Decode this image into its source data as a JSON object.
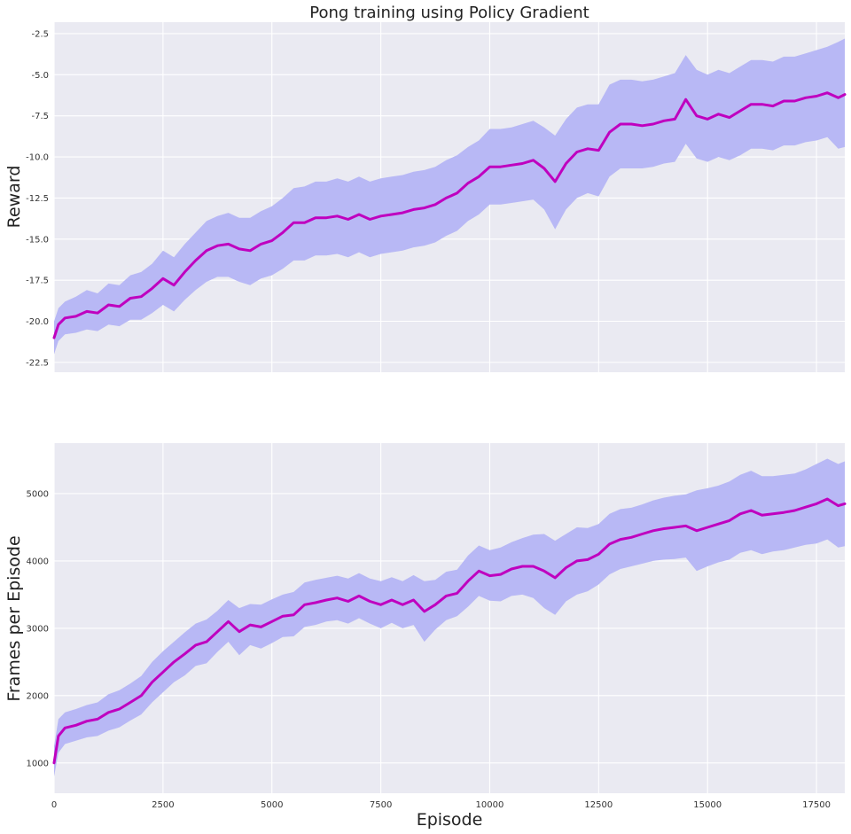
{
  "chart_data": [
    {
      "type": "line",
      "title": "Pong training using Policy Gradient",
      "xlabel": "",
      "ylabel": "Reward",
      "xlim": [
        0,
        18150
      ],
      "ylim": [
        -23.1,
        -1.8
      ],
      "xticks": [
        0,
        2500,
        5000,
        7500,
        10000,
        12500,
        15000,
        17500
      ],
      "xtick_labels_visible": false,
      "yticks": [
        -22.5,
        -20.0,
        -17.5,
        -15.0,
        -12.5,
        -10.0,
        -7.5,
        -5.0,
        -2.5
      ],
      "ytick_labels": [
        "-22.5",
        "-20.0",
        "-17.5",
        "-15.0",
        "-12.5",
        "-10.0",
        "-7.5",
        "-5.0",
        "-2.5"
      ],
      "grid": true,
      "line_color": "#bf00bf",
      "band_color": "#b8b8f5",
      "series": [
        {
          "x": [
            0,
            100,
            250,
            500,
            750,
            1000,
            1250,
            1500,
            1750,
            2000,
            2250,
            2500,
            2750,
            3000,
            3250,
            3500,
            3750,
            4000,
            4250,
            4500,
            4750,
            5000,
            5250,
            5500,
            5750,
            6000,
            6250,
            6500,
            6750,
            7000,
            7250,
            7500,
            7750,
            8000,
            8250,
            8500,
            8750,
            9000,
            9250,
            9500,
            9750,
            10000,
            10250,
            10500,
            10750,
            11000,
            11250,
            11500,
            11750,
            12000,
            12250,
            12500,
            12750,
            13000,
            13250,
            13500,
            13750,
            14000,
            14250,
            14500,
            14750,
            15000,
            15250,
            15500,
            15750,
            16000,
            16250,
            16500,
            16750,
            17000,
            17250,
            17500,
            17750,
            18000,
            18150
          ],
          "values": [
            -21.0,
            -20.2,
            -19.8,
            -19.7,
            -19.4,
            -19.5,
            -19.0,
            -19.1,
            -18.6,
            -18.5,
            -18.0,
            -17.4,
            -17.8,
            -17.0,
            -16.3,
            -15.7,
            -15.4,
            -15.3,
            -15.6,
            -15.7,
            -15.3,
            -15.1,
            -14.6,
            -14.0,
            -14.0,
            -13.7,
            -13.7,
            -13.6,
            -13.8,
            -13.5,
            -13.8,
            -13.6,
            -13.5,
            -13.4,
            -13.2,
            -13.1,
            -12.9,
            -12.5,
            -12.2,
            -11.6,
            -11.2,
            -10.6,
            -10.6,
            -10.5,
            -10.4,
            -10.2,
            -10.7,
            -11.5,
            -10.4,
            -9.7,
            -9.5,
            -9.6,
            -8.5,
            -8.0,
            -8.0,
            -8.1,
            -8.0,
            -7.8,
            -7.7,
            -6.5,
            -7.5,
            -7.7,
            -7.4,
            -7.6,
            -7.2,
            -6.8,
            -6.8,
            -6.9,
            -6.6,
            -6.6,
            -6.4,
            -6.3,
            -6.1,
            -6.4,
            -6.2
          ],
          "lower": [
            -22.0,
            -21.2,
            -20.8,
            -20.7,
            -20.5,
            -20.6,
            -20.2,
            -20.3,
            -19.9,
            -19.9,
            -19.5,
            -19.0,
            -19.4,
            -18.7,
            -18.1,
            -17.6,
            -17.3,
            -17.3,
            -17.6,
            -17.8,
            -17.4,
            -17.2,
            -16.8,
            -16.3,
            -16.3,
            -16.0,
            -16.0,
            -15.9,
            -16.1,
            -15.8,
            -16.1,
            -15.9,
            -15.8,
            -15.7,
            -15.5,
            -15.4,
            -15.2,
            -14.8,
            -14.5,
            -13.9,
            -13.5,
            -12.9,
            -12.9,
            -12.8,
            -12.7,
            -12.6,
            -13.2,
            -14.4,
            -13.2,
            -12.5,
            -12.2,
            -12.4,
            -11.2,
            -10.7,
            -10.7,
            -10.7,
            -10.6,
            -10.4,
            -10.3,
            -9.2,
            -10.1,
            -10.3,
            -10.0,
            -10.2,
            -9.9,
            -9.5,
            -9.5,
            -9.6,
            -9.3,
            -9.3,
            -9.1,
            -9.0,
            -8.8,
            -9.5,
            -9.4
          ],
          "upper": [
            -20.0,
            -19.2,
            -18.8,
            -18.5,
            -18.1,
            -18.3,
            -17.7,
            -17.8,
            -17.2,
            -17.0,
            -16.5,
            -15.7,
            -16.1,
            -15.3,
            -14.6,
            -13.9,
            -13.6,
            -13.4,
            -13.7,
            -13.7,
            -13.3,
            -13.0,
            -12.5,
            -11.9,
            -11.8,
            -11.5,
            -11.5,
            -11.3,
            -11.5,
            -11.2,
            -11.5,
            -11.3,
            -11.2,
            -11.1,
            -10.9,
            -10.8,
            -10.6,
            -10.2,
            -9.9,
            -9.4,
            -9.0,
            -8.3,
            -8.3,
            -8.2,
            -8.0,
            -7.8,
            -8.2,
            -8.7,
            -7.7,
            -7.0,
            -6.8,
            -6.8,
            -5.6,
            -5.3,
            -5.3,
            -5.4,
            -5.3,
            -5.1,
            -4.9,
            -3.8,
            -4.7,
            -5.0,
            -4.7,
            -4.9,
            -4.5,
            -4.1,
            -4.1,
            -4.2,
            -3.9,
            -3.9,
            -3.7,
            -3.5,
            -3.3,
            -3.0,
            -2.8
          ]
        }
      ]
    },
    {
      "type": "line",
      "title": "",
      "xlabel": "Episode",
      "ylabel": "Frames per Episode",
      "xlim": [
        0,
        18150
      ],
      "ylim": [
        550,
        5750
      ],
      "xticks": [
        0,
        2500,
        5000,
        7500,
        10000,
        12500,
        15000,
        17500
      ],
      "xtick_labels": [
        "0",
        "2500",
        "5000",
        "7500",
        "10000",
        "12500",
        "15000",
        "17500"
      ],
      "yticks": [
        1000,
        2000,
        3000,
        4000,
        5000
      ],
      "ytick_labels": [
        "1000",
        "2000",
        "3000",
        "4000",
        "5000"
      ],
      "grid": true,
      "line_color": "#bf00bf",
      "band_color": "#b8b8f5",
      "series": [
        {
          "x": [
            0,
            100,
            250,
            500,
            750,
            1000,
            1250,
            1500,
            1750,
            2000,
            2250,
            2500,
            2750,
            3000,
            3250,
            3500,
            3750,
            4000,
            4250,
            4500,
            4750,
            5000,
            5250,
            5500,
            5750,
            6000,
            6250,
            6500,
            6750,
            7000,
            7250,
            7500,
            7750,
            8000,
            8250,
            8500,
            8750,
            9000,
            9250,
            9500,
            9750,
            10000,
            10250,
            10500,
            10750,
            11000,
            11250,
            11500,
            11750,
            12000,
            12250,
            12500,
            12750,
            13000,
            13250,
            13500,
            13750,
            14000,
            14250,
            14500,
            14750,
            15000,
            15250,
            15500,
            15750,
            16000,
            16250,
            16500,
            16750,
            17000,
            17250,
            17500,
            17750,
            18000,
            18150
          ],
          "values": [
            1000,
            1400,
            1520,
            1560,
            1620,
            1650,
            1750,
            1800,
            1900,
            2000,
            2200,
            2350,
            2500,
            2620,
            2750,
            2800,
            2950,
            3100,
            2950,
            3050,
            3020,
            3100,
            3180,
            3200,
            3350,
            3380,
            3420,
            3450,
            3400,
            3480,
            3400,
            3350,
            3420,
            3350,
            3420,
            3250,
            3350,
            3480,
            3520,
            3700,
            3850,
            3780,
            3800,
            3880,
            3920,
            3920,
            3850,
            3750,
            3900,
            4000,
            4020,
            4100,
            4250,
            4320,
            4350,
            4400,
            4450,
            4480,
            4500,
            4520,
            4450,
            4500,
            4550,
            4600,
            4700,
            4750,
            4680,
            4700,
            4720,
            4750,
            4800,
            4850,
            4920,
            4820,
            4850
          ],
          "lower": [
            800,
            1150,
            1280,
            1330,
            1380,
            1400,
            1480,
            1530,
            1630,
            1720,
            1900,
            2050,
            2200,
            2300,
            2440,
            2480,
            2650,
            2800,
            2600,
            2750,
            2700,
            2780,
            2870,
            2880,
            3020,
            3050,
            3100,
            3120,
            3070,
            3150,
            3070,
            3000,
            3080,
            3000,
            3050,
            2800,
            2980,
            3120,
            3180,
            3320,
            3480,
            3410,
            3400,
            3480,
            3500,
            3450,
            3300,
            3200,
            3400,
            3500,
            3550,
            3650,
            3800,
            3880,
            3920,
            3960,
            4000,
            4020,
            4030,
            4050,
            3850,
            3920,
            3980,
            4020,
            4120,
            4160,
            4100,
            4140,
            4160,
            4200,
            4240,
            4260,
            4320,
            4200,
            4220
          ],
          "upper": [
            1250,
            1650,
            1750,
            1800,
            1860,
            1900,
            2020,
            2080,
            2180,
            2290,
            2500,
            2660,
            2800,
            2940,
            3070,
            3130,
            3260,
            3420,
            3300,
            3360,
            3350,
            3430,
            3500,
            3540,
            3680,
            3720,
            3750,
            3780,
            3740,
            3820,
            3740,
            3700,
            3760,
            3700,
            3790,
            3700,
            3720,
            3840,
            3870,
            4080,
            4230,
            4160,
            4200,
            4280,
            4340,
            4390,
            4400,
            4300,
            4400,
            4500,
            4490,
            4550,
            4700,
            4770,
            4790,
            4840,
            4900,
            4940,
            4970,
            4990,
            5050,
            5080,
            5120,
            5180,
            5280,
            5340,
            5260,
            5260,
            5280,
            5300,
            5360,
            5440,
            5520,
            5440,
            5480
          ]
        }
      ]
    }
  ]
}
